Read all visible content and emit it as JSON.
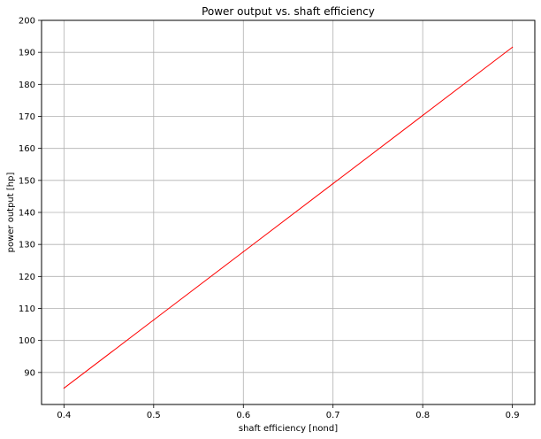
{
  "chart_data": {
    "type": "line",
    "title": "Power output vs. shaft efficiency",
    "xlabel": "shaft efficiency [nond]",
    "ylabel": "power output [hp]",
    "xlim": [
      0.375,
      0.925
    ],
    "ylim": [
      80,
      200
    ],
    "xticks": [
      0.4,
      0.5,
      0.6,
      0.7,
      0.8,
      0.9
    ],
    "xtick_labels": [
      "0.4",
      "0.5",
      "0.6",
      "0.7",
      "0.8",
      "0.9"
    ],
    "yticks": [
      90,
      100,
      110,
      120,
      130,
      140,
      150,
      160,
      170,
      180,
      190,
      200
    ],
    "ytick_labels": [
      "90",
      "100",
      "110",
      "120",
      "130",
      "140",
      "150",
      "160",
      "170",
      "180",
      "190",
      "200"
    ],
    "grid": true,
    "series": [
      {
        "color": "#ff0000",
        "x": [
          0.4,
          0.5,
          0.6,
          0.7,
          0.8,
          0.9
        ],
        "y": [
          85.1,
          106.4,
          127.7,
          149.0,
          170.3,
          191.6
        ]
      }
    ]
  }
}
